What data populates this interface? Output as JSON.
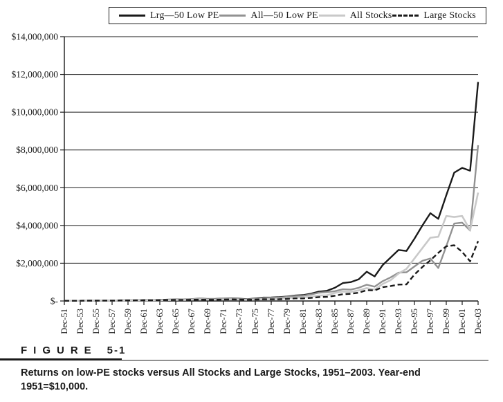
{
  "page": {
    "background": "#ffffff",
    "text_color": "#1a1a1a"
  },
  "legend": {
    "entries": [
      {
        "label": "Lrg—50 Low PE",
        "color": "#1a1a1a",
        "dash": "solid"
      },
      {
        "label": "All—50 Low PE",
        "color": "#929292",
        "dash": "solid"
      },
      {
        "label": "All Stocks",
        "color": "#c9c9c9",
        "dash": "solid"
      },
      {
        "label": "Large Stocks",
        "color": "#1a1a1a",
        "dash": "dashed"
      }
    ]
  },
  "chart_data": {
    "type": "line",
    "title": "",
    "xlabel": "",
    "ylabel": "",
    "ylim": [
      0,
      14000000
    ],
    "grid": "horizontal",
    "legend_position": "top",
    "y_tick_labels": [
      "$14,000,000",
      "$12,000,000",
      "$10,000,000",
      "$8,000,000",
      "$6,000,000",
      "$4,000,000",
      "$2,000,000",
      "$-"
    ],
    "x_tick_labels": [
      "Dec-51",
      "Dec-53",
      "Dec-55",
      "Dec-57",
      "Dec-59",
      "Dec-61",
      "Dec-63",
      "Dec-65",
      "Dec-67",
      "Dec-69",
      "Dec-71",
      "Dec-73",
      "Dec-75",
      "Dec-77",
      "Dec-79",
      "Dec-81",
      "Dec-83",
      "Dec-85",
      "Dec-87",
      "Dec-89",
      "Dec-91",
      "Dec-93",
      "Dec-95",
      "Dec-97",
      "Dec-99",
      "Dec-01",
      "Dec-03"
    ],
    "x_years": [
      1951,
      1952,
      1953,
      1954,
      1955,
      1956,
      1957,
      1958,
      1959,
      1960,
      1961,
      1962,
      1963,
      1964,
      1965,
      1966,
      1967,
      1968,
      1969,
      1970,
      1971,
      1972,
      1973,
      1974,
      1975,
      1976,
      1977,
      1978,
      1979,
      1980,
      1981,
      1982,
      1983,
      1984,
      1985,
      1986,
      1987,
      1988,
      1989,
      1990,
      1991,
      1992,
      1993,
      1994,
      1995,
      1996,
      1997,
      1998,
      1999,
      2000,
      2001,
      2002,
      2003
    ],
    "series": [
      {
        "name": "Lrg—50 Low PE",
        "color": "#1a1a1a",
        "style": "solid",
        "width": 2.4,
        "values": [
          10000,
          11500,
          12000,
          18000,
          23000,
          25500,
          24000,
          34000,
          38000,
          40000,
          50000,
          47000,
          57000,
          68000,
          80000,
          76000,
          100000,
          125000,
          105000,
          110000,
          125000,
          140000,
          120000,
          95000,
          135000,
          180000,
          185000,
          200000,
          235000,
          290000,
          310000,
          390000,
          500000,
          540000,
          700000,
          950000,
          1000000,
          1150000,
          1550000,
          1300000,
          1900000,
          2300000,
          2700000,
          2650000,
          3300000,
          4000000,
          4650000,
          4350000,
          5600000,
          6800000,
          7050000,
          6900000,
          11600000
        ]
      },
      {
        "name": "All—50 Low PE",
        "color": "#929292",
        "style": "solid",
        "width": 2.4,
        "values": [
          10000,
          11000,
          11500,
          17000,
          21000,
          23000,
          21500,
          31000,
          35000,
          36000,
          44000,
          41000,
          49000,
          58000,
          70000,
          66000,
          92000,
          115000,
          95000,
          97000,
          110000,
          120000,
          100000,
          80000,
          115000,
          155000,
          165000,
          180000,
          215000,
          265000,
          280000,
          345000,
          440000,
          470000,
          520000,
          620000,
          600000,
          700000,
          860000,
          760000,
          1050000,
          1250000,
          1500000,
          1520000,
          1830000,
          2130000,
          2250000,
          1750000,
          2900000,
          4100000,
          4150000,
          3730000,
          8250000
        ]
      },
      {
        "name": "All Stocks",
        "color": "#c9c9c9",
        "style": "solid",
        "width": 2.6,
        "values": [
          10000,
          10900,
          10800,
          16000,
          19000,
          20500,
          18500,
          27000,
          30000,
          30500,
          37000,
          34000,
          40000,
          46000,
          55000,
          52000,
          70000,
          85000,
          72000,
          72500,
          82000,
          88000,
          72000,
          55000,
          77000,
          100000,
          105000,
          115000,
          145000,
          185000,
          190000,
          230000,
          295000,
          300000,
          430000,
          500000,
          480000,
          560000,
          680000,
          600000,
          900000,
          1100000,
          1450000,
          1700000,
          2250000,
          2800000,
          3350000,
          3400000,
          4500000,
          4450000,
          4500000,
          3750000,
          5740000
        ]
      },
      {
        "name": "Large Stocks",
        "color": "#1a1a1a",
        "style": "dashed",
        "width": 2.4,
        "values": [
          10000,
          11200,
          11100,
          16500,
          20000,
          21500,
          19500,
          28000,
          31000,
          31500,
          38000,
          35000,
          42000,
          48000,
          54000,
          50000,
          61000,
          68000,
          62000,
          64000,
          73000,
          86000,
          74000,
          55000,
          73000,
          92000,
          87000,
          93000,
          110000,
          140000,
          135000,
          165000,
          205000,
          215000,
          280000,
          360000,
          380000,
          440000,
          570000,
          560000,
          730000,
          790000,
          870000,
          880000,
          1400000,
          1800000,
          2150000,
          2550000,
          2900000,
          2950000,
          2600000,
          2100000,
          3170000
        ]
      }
    ]
  },
  "figure": {
    "heading_word": "FIGURE",
    "heading_number": "5-1",
    "caption": "Returns on low-PE stocks versus All Stocks and Large Stocks, 1951–2003. Year-end 1951=$10,000."
  }
}
